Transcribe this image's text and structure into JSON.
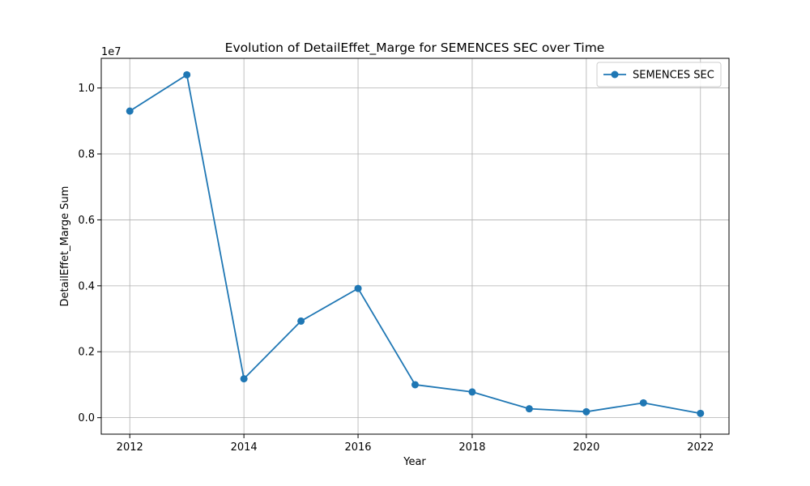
{
  "chart_data": {
    "type": "line",
    "title": "Evolution of DetailEffet_Marge for SEMENCES SEC over Time",
    "xlabel": "Year",
    "ylabel": "DetailEffet_Marge Sum",
    "y_offset_text": "1e7",
    "xlim": [
      2011.5,
      2022.5
    ],
    "ylim": [
      -0.05,
      1.09
    ],
    "x_ticks": [
      2012,
      2014,
      2016,
      2018,
      2020,
      2022
    ],
    "x_tick_labels": [
      "2012",
      "2014",
      "2016",
      "2018",
      "2020",
      "2022"
    ],
    "y_ticks": [
      0.0,
      0.2,
      0.4,
      0.6,
      0.8,
      1.0
    ],
    "y_tick_labels": [
      "0.0",
      "0.2",
      "0.4",
      "0.6",
      "0.8",
      "1.0"
    ],
    "grid": true,
    "legend_position": "top-right",
    "series": [
      {
        "name": "SEMENCES SEC",
        "color": "#1f77b4",
        "marker": "circle",
        "x": [
          2012,
          2013,
          2014,
          2015,
          2016,
          2017,
          2018,
          2019,
          2020,
          2021,
          2022
        ],
        "y": [
          0.93,
          1.04,
          0.118,
          0.293,
          0.392,
          0.1,
          0.078,
          0.027,
          0.018,
          0.045,
          0.013
        ]
      }
    ]
  }
}
